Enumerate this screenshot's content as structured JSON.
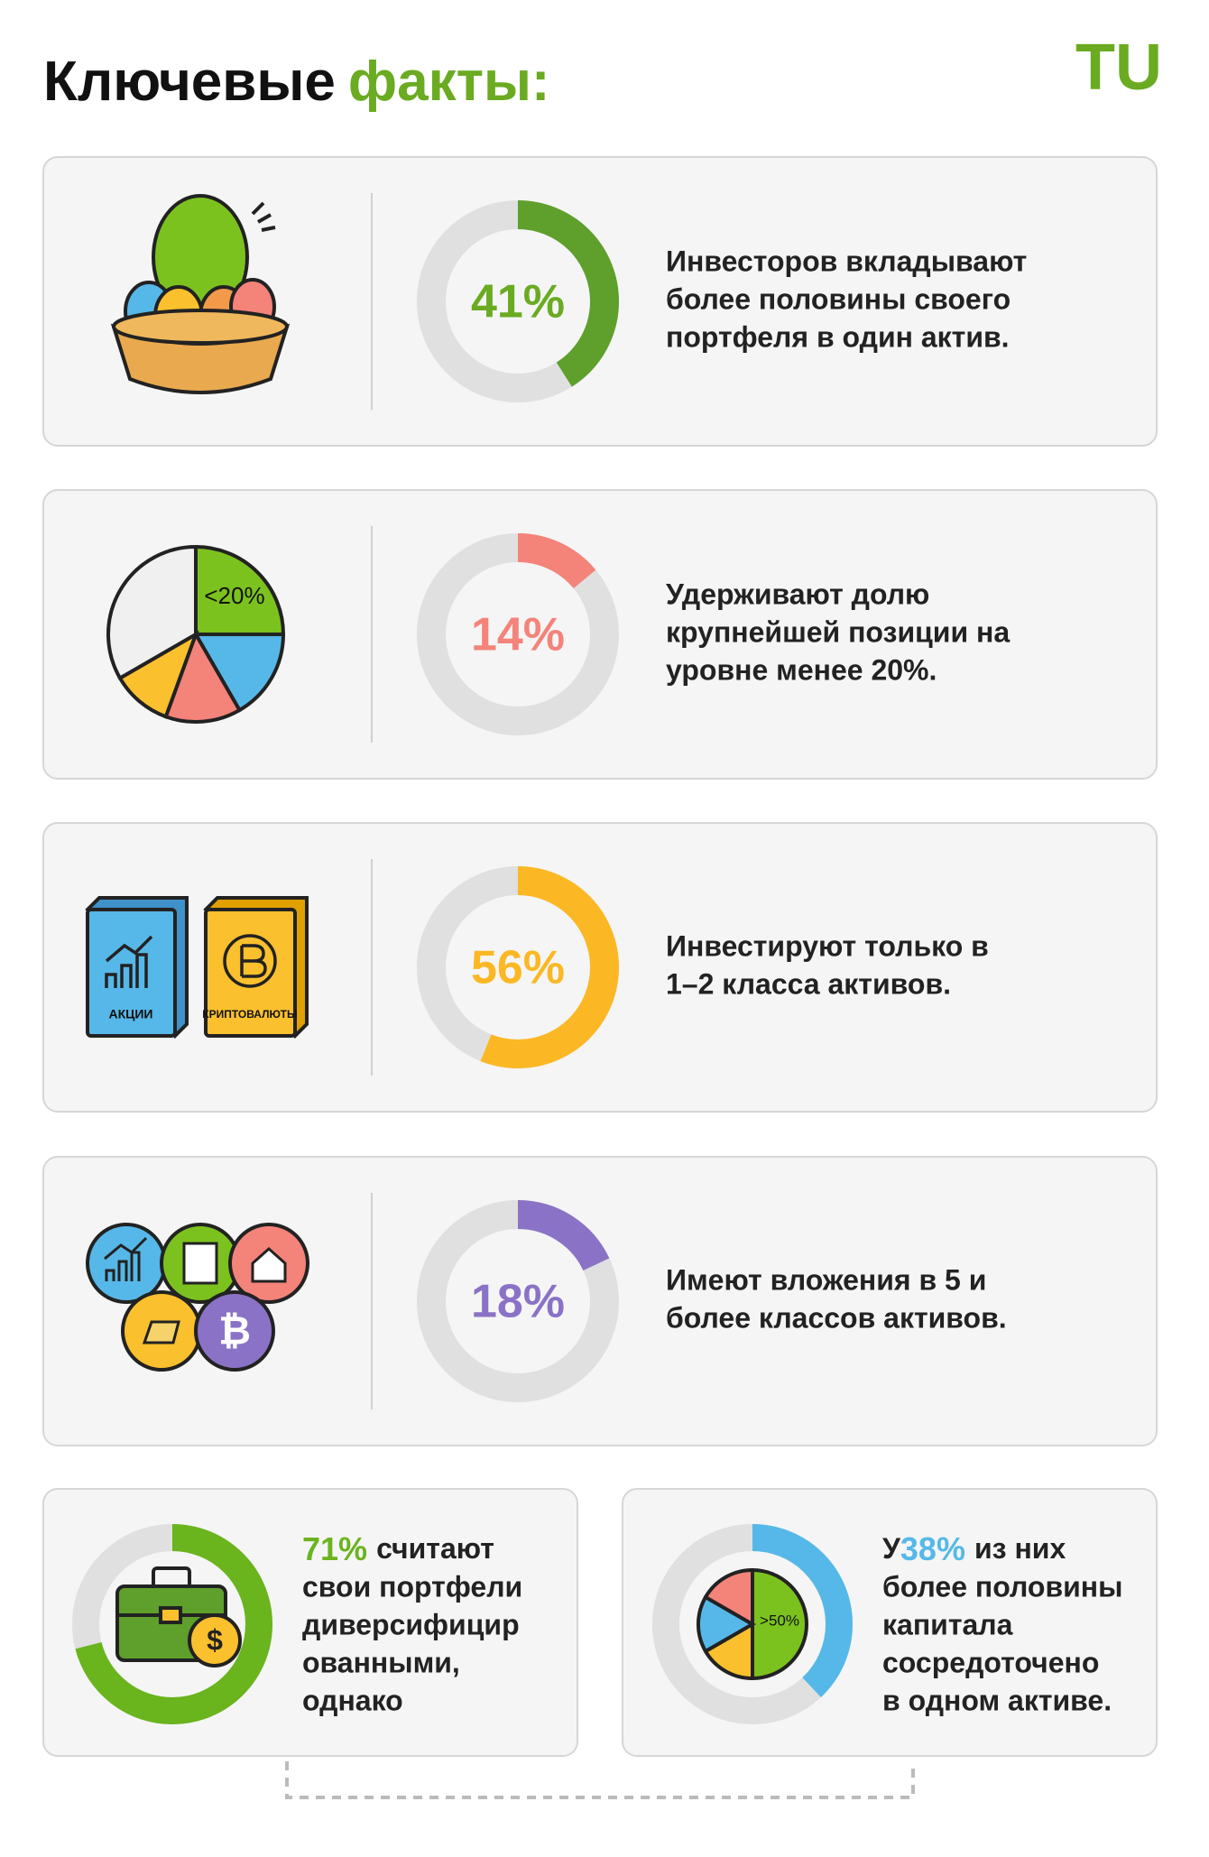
{
  "header": {
    "title_main": "Ключевые",
    "title_accent": "факты:",
    "logo": "TU"
  },
  "cards": [
    {
      "value": 41,
      "value_label": "41%",
      "color": "#5f9f2c",
      "label_color": "#6aab22",
      "lines": [
        "Инвесторов вкладывают",
        "более половины своего",
        "портфеля в один актив."
      ]
    },
    {
      "value": 14,
      "value_label": "14%",
      "color": "#f4837a",
      "label_color": "#f4837a",
      "icon_labels": [
        "<20%"
      ],
      "lines": [
        "Удерживают долю",
        "крупнейшей позиции на",
        "уровне менее 20%."
      ]
    },
    {
      "value": 56,
      "value_label": "56%",
      "color": "#fbb824",
      "label_color": "#fbb824",
      "icon_labels": [
        "АКЦИИ",
        "КРИПТОВАЛЮТЫ"
      ],
      "lines": [
        "Инвестируют только в",
        "1–2 класса активов."
      ]
    },
    {
      "value": 18,
      "value_label": "18%",
      "color": "#8a73c6",
      "label_color": "#8a73c6",
      "lines": [
        "Имеют вложения в 5 и",
        "более классов активов."
      ]
    }
  ],
  "bottom": [
    {
      "value": 71,
      "value_label": "71%",
      "color": "#6ab41e",
      "first_line": "считают",
      "lines": [
        "свои портфели",
        "диверсифицир",
        "ованными,",
        "однако"
      ]
    },
    {
      "value": 38,
      "value_label": "38%",
      "color": "#56b8e8",
      "prefix": "У",
      "first_line": "из них",
      "icon_labels": [
        ">50%"
      ],
      "lines": [
        "более половины",
        "капитала",
        "сосредоточено",
        "в одном активе."
      ]
    }
  ]
}
